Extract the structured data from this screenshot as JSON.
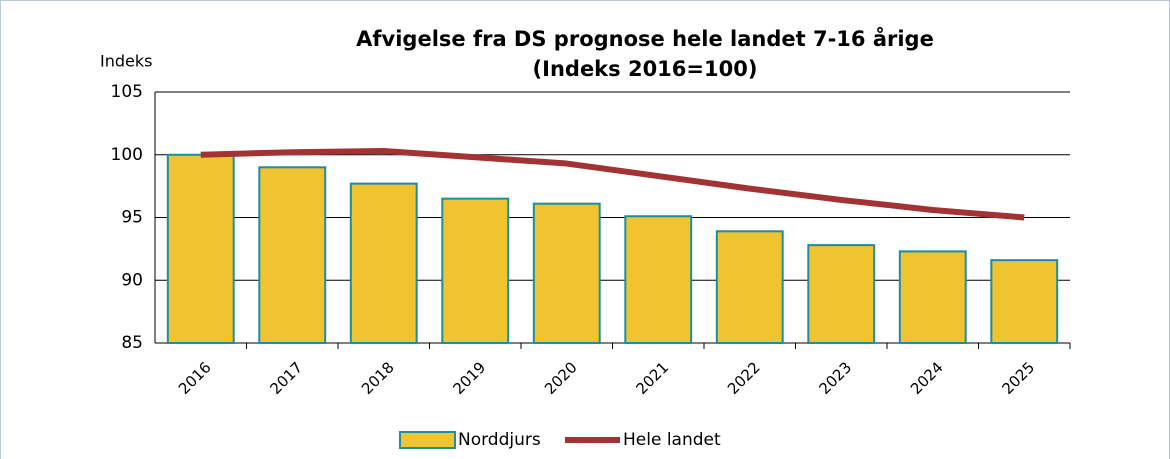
{
  "chart_data": {
    "type": "combo",
    "title": [
      "Afvigelse fra DS prognose hele landet 7-16 årige",
      "(Indeks 2016=100)"
    ],
    "y_label": "Indeks",
    "categories": [
      "2016",
      "2017",
      "2018",
      "2019",
      "2020",
      "2021",
      "2022",
      "2023",
      "2024",
      "2025"
    ],
    "series": [
      {
        "name": "Norddjurs",
        "type": "bar",
        "color": "#f0c330",
        "edge_color": "#1a8fa0",
        "values": [
          100,
          99.0,
          97.7,
          96.5,
          96.1,
          95.1,
          93.9,
          92.8,
          92.3,
          91.6
        ]
      },
      {
        "name": "Hele landet",
        "type": "line",
        "color": "#a33234",
        "values": [
          100,
          100.2,
          100.3,
          99.8,
          99.3,
          98.3,
          97.3,
          96.4,
          95.6,
          95.0
        ]
      }
    ],
    "ylim": [
      85,
      105
    ],
    "yticks": [
      85,
      90,
      95,
      100,
      105
    ],
    "grid": true,
    "legend": "bottom"
  }
}
